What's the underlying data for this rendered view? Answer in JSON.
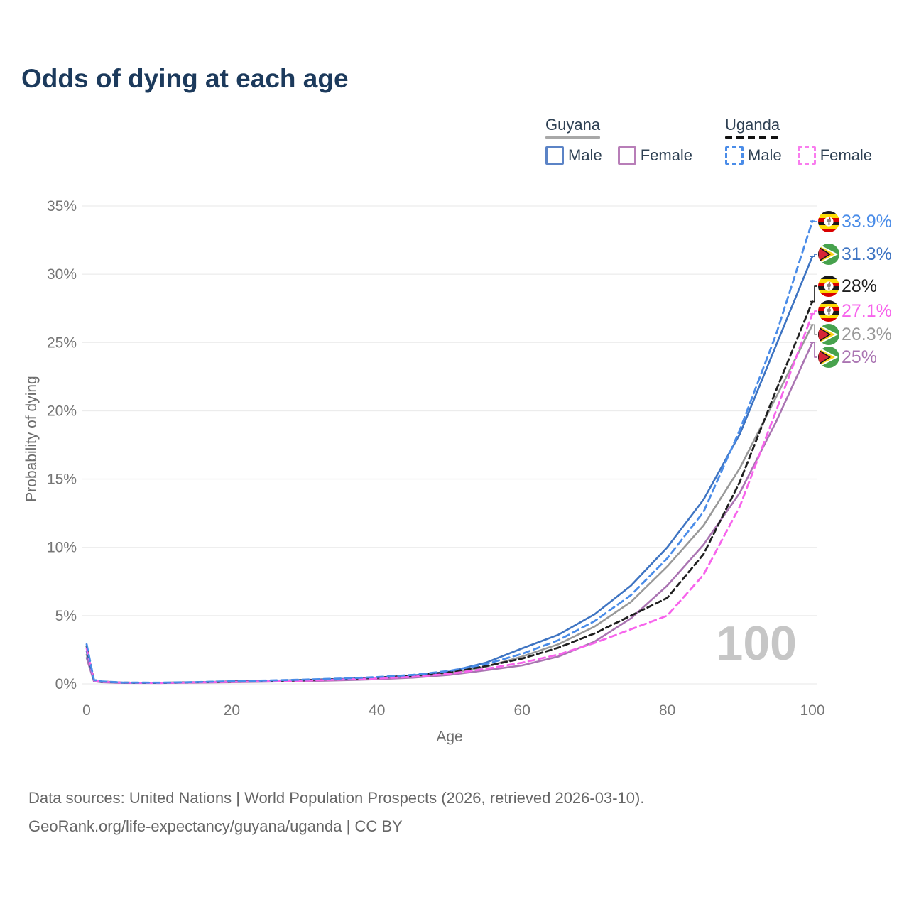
{
  "title": "Odds of dying at each age",
  "legend": {
    "guyana": {
      "title": "Guyana",
      "male": "Male",
      "female": "Female"
    },
    "uganda": {
      "title": "Uganda",
      "male": "Male",
      "female": "Female"
    }
  },
  "watermark": "100",
  "footer": {
    "line1": "Data sources: United Nations | World Population Prospects (2026, retrieved 2026-03-10).",
    "line2": "GeoRank.org/life-expectancy/guyana/uganda | CC BY"
  },
  "colors": {
    "guyana_male": "#3e74c2",
    "guyana_female": "#aa74b2",
    "guyana_both": "#999999",
    "uganda_male": "#4a8ce8",
    "uganda_female": "#f763ec",
    "uganda_both": "#1f1f1f",
    "title_text": "#1c3a5c",
    "tick_text": "#757575",
    "grid": "#ececec"
  },
  "chart_data": {
    "type": "line",
    "title": "Odds of dying at each age",
    "xlabel": "Age",
    "ylabel": "Probability of dying",
    "xlim": [
      0,
      100
    ],
    "ylim": [
      0,
      35
    ],
    "x_ticks": [
      0,
      20,
      40,
      60,
      80,
      100
    ],
    "y_ticks": [
      "0%",
      "5%",
      "10%",
      "15%",
      "20%",
      "25%",
      "30%",
      "35%"
    ],
    "grid": "horizontal",
    "legend_position": "top-right",
    "x": [
      0,
      1,
      2,
      5,
      10,
      15,
      20,
      25,
      30,
      35,
      40,
      45,
      50,
      55,
      60,
      65,
      70,
      75,
      80,
      85,
      90,
      95,
      100
    ],
    "series": [
      {
        "name": "Guyana Both sexes",
        "country": "Guyana",
        "sex": "Both",
        "line": "solid",
        "color": "#999999",
        "end_label": "26.3%",
        "values": [
          2.15,
          0.22,
          0.13,
          0.08,
          0.07,
          0.1,
          0.15,
          0.19,
          0.24,
          0.31,
          0.4,
          0.54,
          0.78,
          1.25,
          2.0,
          2.9,
          4.2,
          6.0,
          8.6,
          11.6,
          15.8,
          21.0,
          26.3
        ]
      },
      {
        "name": "Guyana Female",
        "country": "Guyana",
        "sex": "Female",
        "line": "solid",
        "color": "#aa74b2",
        "end_label": "25%",
        "values": [
          1.9,
          0.2,
          0.12,
          0.07,
          0.06,
          0.09,
          0.12,
          0.16,
          0.2,
          0.26,
          0.34,
          0.46,
          0.66,
          1.0,
          1.35,
          2.0,
          3.1,
          4.8,
          7.2,
          10.2,
          14.0,
          19.2,
          25.0
        ]
      },
      {
        "name": "Guyana Male",
        "country": "Guyana",
        "sex": "Male",
        "line": "solid",
        "color": "#3e74c2",
        "end_label": "31.3%",
        "values": [
          2.4,
          0.25,
          0.15,
          0.09,
          0.08,
          0.12,
          0.17,
          0.23,
          0.29,
          0.36,
          0.46,
          0.62,
          0.9,
          1.55,
          2.6,
          3.6,
          5.1,
          7.2,
          10.0,
          13.5,
          18.3,
          24.8,
          31.3
        ]
      },
      {
        "name": "Uganda Both sexes",
        "country": "Uganda",
        "sex": "Both",
        "line": "dashed",
        "color": "#1f1f1f",
        "end_label": "28%",
        "values": [
          2.75,
          0.28,
          0.17,
          0.09,
          0.08,
          0.12,
          0.17,
          0.22,
          0.27,
          0.35,
          0.45,
          0.6,
          0.86,
          1.3,
          1.85,
          2.65,
          3.7,
          5.0,
          6.3,
          9.5,
          14.8,
          21.5,
          28.0
        ]
      },
      {
        "name": "Uganda Female",
        "country": "Uganda",
        "sex": "Female",
        "line": "dashed",
        "color": "#f763ec",
        "end_label": "27.1%",
        "values": [
          2.6,
          0.26,
          0.16,
          0.09,
          0.07,
          0.11,
          0.15,
          0.19,
          0.24,
          0.31,
          0.4,
          0.52,
          0.74,
          1.1,
          1.55,
          2.15,
          3.0,
          4.0,
          5.0,
          8.0,
          13.0,
          20.0,
          27.1
        ]
      },
      {
        "name": "Uganda Male",
        "country": "Uganda",
        "sex": "Male",
        "line": "dashed",
        "color": "#4a8ce8",
        "end_label": "33.9%",
        "values": [
          2.9,
          0.3,
          0.18,
          0.1,
          0.09,
          0.13,
          0.19,
          0.25,
          0.31,
          0.39,
          0.5,
          0.66,
          0.95,
          1.45,
          2.2,
          3.2,
          4.6,
          6.5,
          9.2,
          12.6,
          18.6,
          25.6,
          33.9
        ]
      }
    ]
  }
}
